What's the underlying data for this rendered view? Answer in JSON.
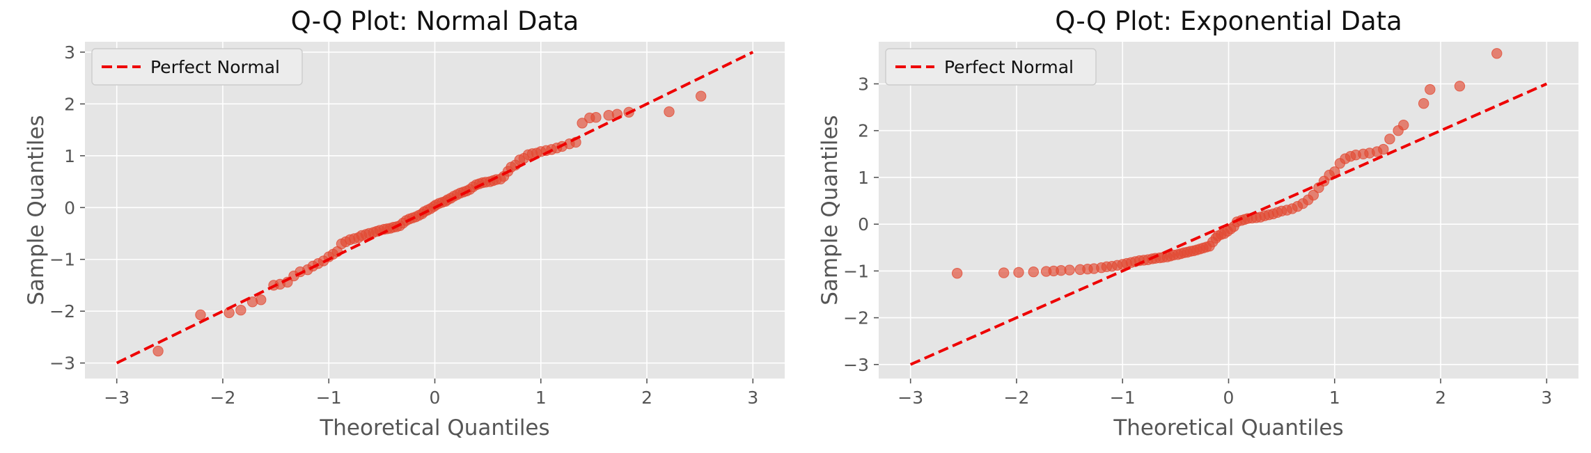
{
  "chart_data": [
    {
      "type": "scatter",
      "title": "Q-Q Plot: Normal Data",
      "xlabel": "Theoretical Quantiles",
      "ylabel": "Sample Quantiles",
      "xlim": [
        -3.3,
        3.3
      ],
      "ylim": [
        -3.3,
        3.2
      ],
      "xticks": [
        -3,
        -2,
        -1,
        0,
        1,
        2,
        3
      ],
      "yticks": [
        -3,
        -2,
        -1,
        0,
        1,
        2,
        3
      ],
      "grid": true,
      "legend": {
        "position": "top-left",
        "entries": [
          "Perfect Normal"
        ]
      },
      "colors": {
        "points": "#e24a33",
        "line": "#ee0000",
        "background": "#e5e5e5"
      },
      "reference_line": {
        "name": "Perfect Normal",
        "x": [
          -3,
          3
        ],
        "y": [
          -3,
          3
        ],
        "style": "dashed"
      },
      "series": [
        {
          "x": [
            -2.61,
            -2.21,
            -1.94,
            -1.83,
            -1.72,
            -1.64,
            -1.52,
            -1.46,
            -1.39,
            -1.33,
            -1.27,
            -1.2,
            -1.15,
            -1.1,
            -1.05,
            -1.0,
            -0.96,
            -0.92,
            -0.88,
            -0.84,
            -0.8,
            -0.76,
            -0.72,
            -0.69,
            -0.65,
            -0.62,
            -0.58,
            -0.55,
            -0.52,
            -0.48,
            -0.45,
            -0.42,
            -0.39,
            -0.36,
            -0.33,
            -0.3,
            -0.27,
            -0.24,
            -0.21,
            -0.18,
            -0.15,
            -0.12,
            -0.1,
            -0.07,
            -0.04,
            -0.01,
            0.01,
            0.04,
            0.07,
            0.1,
            0.12,
            0.15,
            0.18,
            0.21,
            0.24,
            0.27,
            0.3,
            0.33,
            0.36,
            0.39,
            0.42,
            0.45,
            0.48,
            0.52,
            0.55,
            0.58,
            0.62,
            0.65,
            0.69,
            0.72,
            0.76,
            0.8,
            0.84,
            0.88,
            0.92,
            0.96,
            1.0,
            1.05,
            1.1,
            1.15,
            1.2,
            1.27,
            1.33,
            1.39,
            1.46,
            1.52,
            1.64,
            1.72,
            1.83,
            2.21,
            2.51
          ],
          "y": [
            -2.77,
            -2.07,
            -2.03,
            -1.98,
            -1.82,
            -1.78,
            -1.5,
            -1.48,
            -1.44,
            -1.32,
            -1.24,
            -1.2,
            -1.13,
            -1.08,
            -1.03,
            -0.95,
            -0.9,
            -0.85,
            -0.7,
            -0.66,
            -0.62,
            -0.6,
            -0.58,
            -0.54,
            -0.52,
            -0.5,
            -0.48,
            -0.46,
            -0.44,
            -0.42,
            -0.41,
            -0.4,
            -0.38,
            -0.37,
            -0.35,
            -0.3,
            -0.25,
            -0.22,
            -0.2,
            -0.18,
            -0.15,
            -0.12,
            -0.08,
            -0.05,
            -0.02,
            0.02,
            0.05,
            0.08,
            0.1,
            0.12,
            0.15,
            0.18,
            0.22,
            0.25,
            0.28,
            0.3,
            0.32,
            0.35,
            0.4,
            0.44,
            0.46,
            0.48,
            0.49,
            0.5,
            0.52,
            0.54,
            0.55,
            0.6,
            0.7,
            0.78,
            0.82,
            0.92,
            0.95,
            1.02,
            1.04,
            1.05,
            1.08,
            1.1,
            1.12,
            1.15,
            1.18,
            1.23,
            1.26,
            1.63,
            1.73,
            1.74,
            1.78,
            1.8,
            1.84,
            1.85,
            2.15
          ]
        }
      ]
    },
    {
      "type": "scatter",
      "title": "Q-Q Plot: Exponential Data",
      "xlabel": "Theoretical Quantiles",
      "ylabel": "Sample Quantiles",
      "xlim": [
        -3.3,
        3.3
      ],
      "ylim": [
        -3.3,
        3.9
      ],
      "xticks": [
        -3,
        -2,
        -1,
        0,
        1,
        2,
        3
      ],
      "yticks": [
        -3,
        -2,
        -1,
        0,
        1,
        2,
        3
      ],
      "grid": true,
      "legend": {
        "position": "top-left",
        "entries": [
          "Perfect Normal"
        ]
      },
      "colors": {
        "points": "#e24a33",
        "line": "#ee0000",
        "background": "#e5e5e5"
      },
      "reference_line": {
        "name": "Perfect Normal",
        "x": [
          -3,
          3
        ],
        "y": [
          -3,
          3
        ],
        "style": "dashed"
      },
      "series": [
        {
          "x": [
            -2.56,
            -2.12,
            -1.98,
            -1.84,
            -1.72,
            -1.65,
            -1.58,
            -1.5,
            -1.4,
            -1.33,
            -1.27,
            -1.2,
            -1.15,
            -1.1,
            -1.05,
            -1.0,
            -0.96,
            -0.92,
            -0.88,
            -0.84,
            -0.8,
            -0.76,
            -0.72,
            -0.69,
            -0.65,
            -0.62,
            -0.58,
            -0.55,
            -0.52,
            -0.48,
            -0.45,
            -0.42,
            -0.39,
            -0.36,
            -0.33,
            -0.3,
            -0.27,
            -0.24,
            -0.21,
            -0.18,
            -0.15,
            -0.12,
            -0.1,
            -0.07,
            -0.04,
            -0.01,
            0.02,
            0.05,
            0.08,
            0.12,
            0.15,
            0.18,
            0.22,
            0.26,
            0.3,
            0.34,
            0.38,
            0.42,
            0.46,
            0.5,
            0.55,
            0.6,
            0.65,
            0.7,
            0.75,
            0.8,
            0.85,
            0.9,
            0.95,
            1.0,
            1.05,
            1.1,
            1.15,
            1.2,
            1.27,
            1.33,
            1.4,
            1.46,
            1.52,
            1.6,
            1.65,
            1.84,
            1.9,
            2.18,
            2.53
          ],
          "y": [
            -1.05,
            -1.04,
            -1.03,
            -1.02,
            -1.01,
            -1.0,
            -0.99,
            -0.98,
            -0.97,
            -0.96,
            -0.95,
            -0.93,
            -0.91,
            -0.9,
            -0.88,
            -0.86,
            -0.84,
            -0.82,
            -0.8,
            -0.78,
            -0.77,
            -0.76,
            -0.74,
            -0.73,
            -0.72,
            -0.71,
            -0.7,
            -0.68,
            -0.66,
            -0.65,
            -0.63,
            -0.61,
            -0.6,
            -0.58,
            -0.57,
            -0.55,
            -0.53,
            -0.51,
            -0.49,
            -0.47,
            -0.38,
            -0.3,
            -0.25,
            -0.22,
            -0.2,
            -0.15,
            -0.1,
            -0.05,
            0.05,
            0.08,
            0.1,
            0.12,
            0.13,
            0.14,
            0.15,
            0.18,
            0.2,
            0.22,
            0.25,
            0.28,
            0.3,
            0.33,
            0.38,
            0.44,
            0.52,
            0.62,
            0.78,
            0.92,
            1.05,
            1.12,
            1.3,
            1.4,
            1.45,
            1.48,
            1.5,
            1.52,
            1.55,
            1.6,
            1.82,
            2.0,
            2.12,
            2.58,
            2.88,
            2.95,
            3.65
          ]
        }
      ]
    }
  ]
}
